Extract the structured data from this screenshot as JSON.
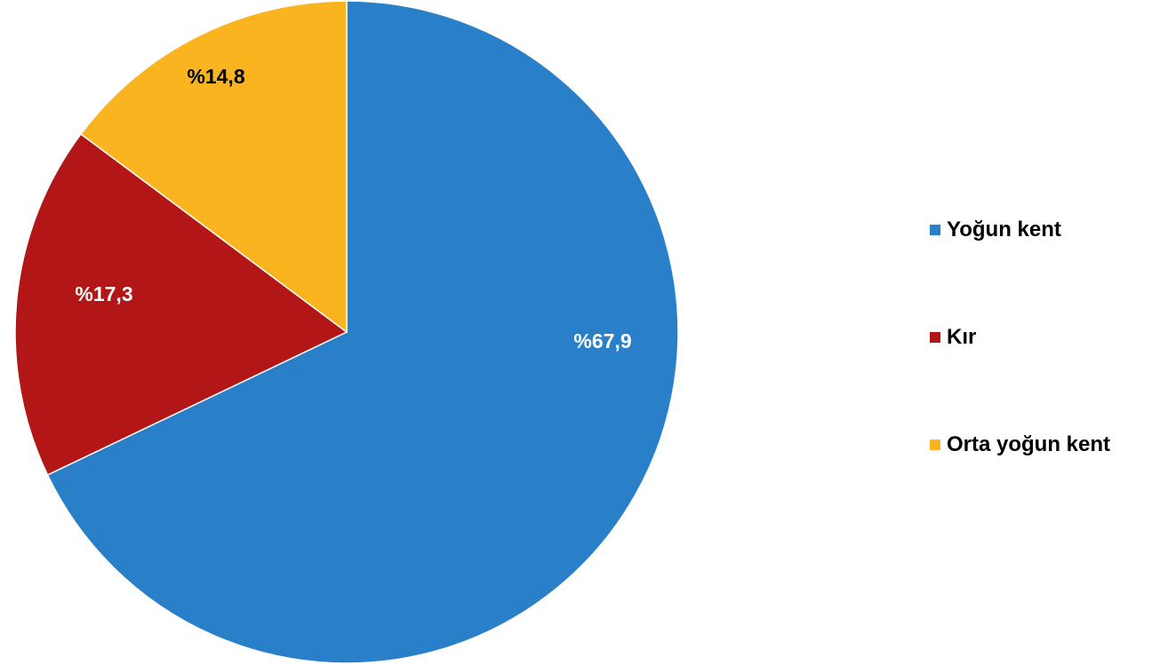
{
  "chart_data": {
    "type": "pie",
    "title": "",
    "slices": [
      {
        "name": "Yoğun kent",
        "value": 67.9,
        "label": "%67,9",
        "color": "#2a80c8",
        "label_color": "#ffffff"
      },
      {
        "name": "Kır",
        "value": 17.3,
        "label": "%17,3",
        "color": "#b31616",
        "label_color": "#ffffff"
      },
      {
        "name": "Orta yoğun kent",
        "value": 14.8,
        "label": "%14,8",
        "color": "#f9b41f",
        "label_color": "#000000"
      }
    ],
    "legend_position": "right"
  }
}
